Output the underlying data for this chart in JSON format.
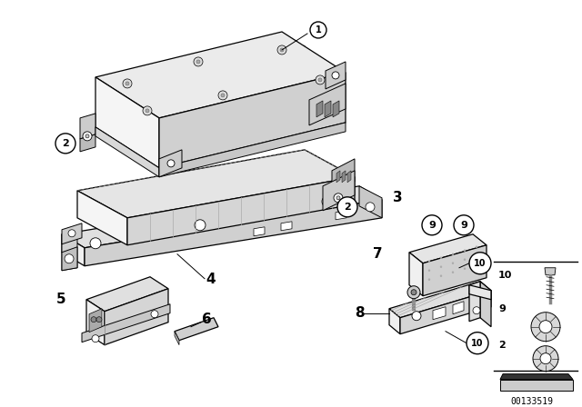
{
  "background_color": "#ffffff",
  "diagram_id": "00133519",
  "line_color": "#000000",
  "face_top": "#e8e8e8",
  "face_front": "#f5f5f5",
  "face_right": "#cccccc",
  "face_dark": "#aaaaaa"
}
